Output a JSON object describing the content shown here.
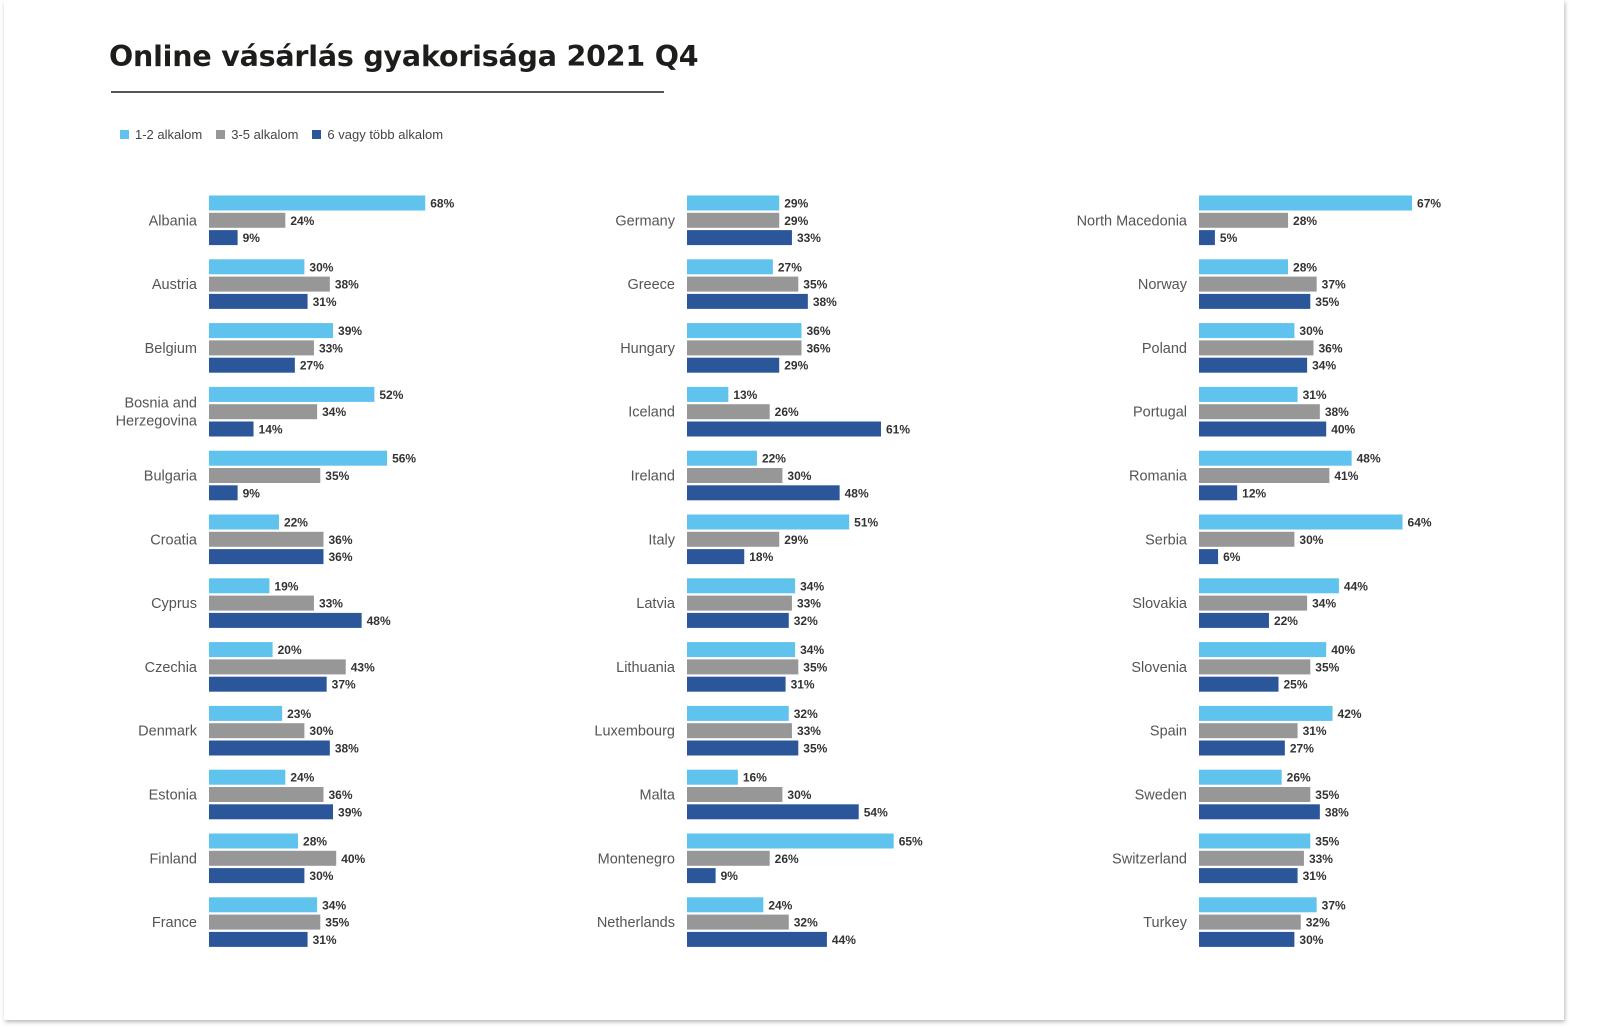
{
  "chart_data": {
    "type": "bar",
    "orientation": "horizontal",
    "title": "Online vásárlás gyakorisága 2021 Q4",
    "legend_position": "top-left",
    "series": [
      {
        "name": "1-2 alkalom",
        "color": "#5fc3ed"
      },
      {
        "name": "3-5 alkalom",
        "color": "#979797"
      },
      {
        "name": "6 vagy több alkalom",
        "color": "#2b579a"
      }
    ],
    "countries": [
      {
        "name": "Albania",
        "values": [
          68,
          24,
          9
        ]
      },
      {
        "name": "Austria",
        "values": [
          30,
          38,
          31
        ]
      },
      {
        "name": "Belgium",
        "values": [
          39,
          33,
          27
        ]
      },
      {
        "name": "Bosnia and Herzegovina",
        "values": [
          52,
          34,
          14
        ]
      },
      {
        "name": "Bulgaria",
        "values": [
          56,
          35,
          9
        ]
      },
      {
        "name": "Croatia",
        "values": [
          22,
          36,
          36
        ]
      },
      {
        "name": "Cyprus",
        "values": [
          19,
          33,
          48
        ]
      },
      {
        "name": "Czechia",
        "values": [
          20,
          43,
          37
        ]
      },
      {
        "name": "Denmark",
        "values": [
          23,
          30,
          38
        ]
      },
      {
        "name": "Estonia",
        "values": [
          24,
          36,
          39
        ]
      },
      {
        "name": "Finland",
        "values": [
          28,
          40,
          30
        ]
      },
      {
        "name": "France",
        "values": [
          34,
          35,
          31
        ]
      },
      {
        "name": "Germany",
        "values": [
          29,
          29,
          33
        ]
      },
      {
        "name": "Greece",
        "values": [
          27,
          35,
          38
        ]
      },
      {
        "name": "Hungary",
        "values": [
          36,
          36,
          29
        ]
      },
      {
        "name": "Iceland",
        "values": [
          13,
          26,
          61
        ]
      },
      {
        "name": "Ireland",
        "values": [
          22,
          30,
          48
        ]
      },
      {
        "name": "Italy",
        "values": [
          51,
          29,
          18
        ]
      },
      {
        "name": "Latvia",
        "values": [
          34,
          33,
          32
        ]
      },
      {
        "name": "Lithuania",
        "values": [
          34,
          35,
          31
        ]
      },
      {
        "name": "Luxembourg",
        "values": [
          32,
          33,
          35
        ]
      },
      {
        "name": "Malta",
        "values": [
          16,
          30,
          54
        ]
      },
      {
        "name": "Montenegro",
        "values": [
          65,
          26,
          9
        ]
      },
      {
        "name": "Netherlands",
        "values": [
          24,
          32,
          44
        ]
      },
      {
        "name": "North Macedonia",
        "values": [
          67,
          28,
          5
        ]
      },
      {
        "name": "Norway",
        "values": [
          28,
          37,
          35
        ]
      },
      {
        "name": "Poland",
        "values": [
          30,
          36,
          34
        ]
      },
      {
        "name": "Portugal",
        "values": [
          31,
          38,
          40
        ]
      },
      {
        "name": "Romania",
        "values": [
          48,
          41,
          12
        ]
      },
      {
        "name": "Serbia",
        "values": [
          64,
          30,
          6
        ]
      },
      {
        "name": "Slovakia",
        "values": [
          44,
          34,
          22
        ]
      },
      {
        "name": "Slovenia",
        "values": [
          40,
          35,
          25
        ]
      },
      {
        "name": "Spain",
        "values": [
          42,
          31,
          27
        ]
      },
      {
        "name": "Sweden",
        "values": [
          26,
          35,
          38
        ]
      },
      {
        "name": "Switzerland",
        "values": [
          35,
          33,
          31
        ]
      },
      {
        "name": "Turkey",
        "values": [
          37,
          32,
          30
        ]
      }
    ],
    "value_suffix": "%"
  }
}
